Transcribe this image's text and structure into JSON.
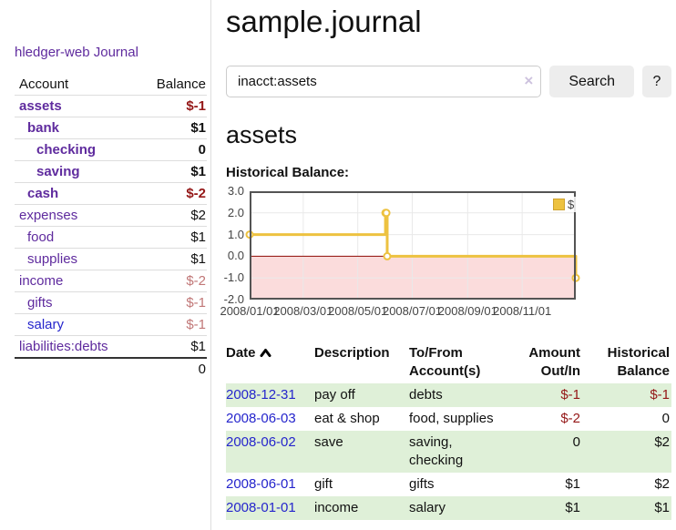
{
  "app": {
    "brand": "hledger-web",
    "nav": {
      "journal": "Journal"
    }
  },
  "colors": {
    "link_purple": "#5f2b9e",
    "link_blue": "#2525cc",
    "negative_strong": "#941717",
    "negative_soft": "#c17777",
    "row_stripe_green": "#dff0d8",
    "chart_series_gold": "#edc240",
    "chart_negative_fill": "#fbdcdc",
    "chart_zero_line": "#8f0b04",
    "chart_grid": "#e9e9e9",
    "chart_border": "#545454"
  },
  "sidebar": {
    "col_account": "Account",
    "col_balance": "Balance",
    "accounts": [
      {
        "name": "assets",
        "indent": 0,
        "bold": true,
        "balance": "$-1",
        "neg": "strong",
        "link": "purple"
      },
      {
        "name": "bank",
        "indent": 1,
        "bold": true,
        "balance": "$1",
        "neg": "none",
        "link": "purple"
      },
      {
        "name": "checking",
        "indent": 2,
        "bold": true,
        "balance": "0",
        "neg": "none",
        "link": "purple"
      },
      {
        "name": "saving",
        "indent": 2,
        "bold": true,
        "balance": "$1",
        "neg": "none",
        "link": "purple"
      },
      {
        "name": "cash",
        "indent": 1,
        "bold": true,
        "balance": "$-2",
        "neg": "strong",
        "link": "purple"
      },
      {
        "name": "expenses",
        "indent": 0,
        "bold": false,
        "balance": "$2",
        "neg": "none",
        "link": "purple"
      },
      {
        "name": "food",
        "indent": 1,
        "bold": false,
        "balance": "$1",
        "neg": "none",
        "link": "purple"
      },
      {
        "name": "supplies",
        "indent": 1,
        "bold": false,
        "balance": "$1",
        "neg": "none",
        "link": "purple"
      },
      {
        "name": "income",
        "indent": 0,
        "bold": false,
        "balance": "$-2",
        "neg": "soft",
        "link": "purple"
      },
      {
        "name": "gifts",
        "indent": 1,
        "bold": false,
        "balance": "$-1",
        "neg": "soft",
        "link": "purple"
      },
      {
        "name": "salary",
        "indent": 1,
        "bold": false,
        "balance": "$-1",
        "neg": "soft",
        "link": "blue"
      },
      {
        "name": "liabilities:debts",
        "indent": 0,
        "bold": false,
        "balance": "$1",
        "neg": "none",
        "link": "purple"
      }
    ],
    "total": "0"
  },
  "header": {
    "title": "sample.journal"
  },
  "search": {
    "value": "inacct:assets",
    "clear_icon": "×",
    "button_label": "Search",
    "help_label": "?"
  },
  "account_page": {
    "title": "assets",
    "chart_label": "Historical Balance:"
  },
  "chart_data": {
    "type": "line",
    "style": "step",
    "title": "Historical Balance:",
    "series": [
      {
        "name": "$",
        "points": [
          [
            "2008-01-01",
            1
          ],
          [
            "2008-06-01",
            2
          ],
          [
            "2008-06-02",
            2
          ],
          [
            "2008-06-03",
            0
          ],
          [
            "2008-12-31",
            -1
          ]
        ]
      }
    ],
    "ylim": [
      -2,
      3
    ],
    "y_ticks": [
      3,
      2,
      1,
      0,
      -1,
      -2
    ],
    "y_tick_labels": [
      "3.0",
      "2.0",
      "1.0",
      "0.0",
      "-1.0",
      "-2.0"
    ],
    "x_ticks": [
      "2008/01/01",
      "2008/03/01",
      "2008/05/01",
      "2008/07/01",
      "2008/09/01",
      "2008/11/01"
    ],
    "x_range": [
      "2008-01-01",
      "2008-12-31"
    ],
    "grid": true,
    "negative_region_shaded": true,
    "legend": {
      "label": "$",
      "position": "top-right"
    }
  },
  "register": {
    "columns": [
      "Date",
      "Description",
      "To/From Account(s)",
      "Amount Out/In",
      "Historical Balance"
    ],
    "rows": [
      {
        "date": "2008-12-31",
        "description": "pay off",
        "accounts": "debts",
        "amount": "$-1",
        "balance": "$-1"
      },
      {
        "date": "2008-06-03",
        "description": "eat & shop",
        "accounts": "food, supplies",
        "amount": "$-2",
        "balance": "0"
      },
      {
        "date": "2008-06-02",
        "description": "save",
        "accounts": "saving, checking",
        "amount": "0",
        "balance": "$2"
      },
      {
        "date": "2008-06-01",
        "description": "gift",
        "accounts": "gifts",
        "amount": "$1",
        "balance": "$2"
      },
      {
        "date": "2008-01-01",
        "description": "income",
        "accounts": "salary",
        "amount": "$1",
        "balance": "$1"
      }
    ]
  }
}
